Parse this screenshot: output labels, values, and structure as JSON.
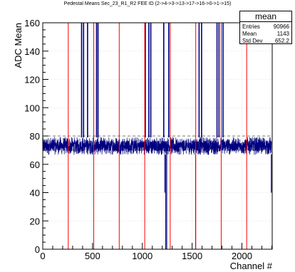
{
  "chart_data": {
    "type": "line",
    "title": "Pedestal Means Sec_23_R1_R2 FEE ID (2->4->3->13->17->16->0->1->15)",
    "xlabel": "Channel #",
    "ylabel": "ADC Mean",
    "xlim": [
      0,
      2304
    ],
    "ylim": [
      0,
      160
    ],
    "x_ticks": [
      0,
      500,
      1000,
      1500,
      2000
    ],
    "y_ticks": [
      0,
      20,
      40,
      60,
      80,
      100,
      120,
      140,
      160
    ],
    "grid": true,
    "series": [
      {
        "name": "mean",
        "color": "#00007f",
        "baseline_mean": 73,
        "noise_band": [
          66,
          80
        ],
        "spikes": [
          {
            "x": 390,
            "y": 160
          },
          {
            "x": 410,
            "y": 160
          },
          {
            "x": 450,
            "y": 160
          },
          {
            "x": 540,
            "y": 160
          },
          {
            "x": 555,
            "y": 160
          },
          {
            "x": 1030,
            "y": 160
          },
          {
            "x": 1065,
            "y": 160
          },
          {
            "x": 1085,
            "y": 160
          },
          {
            "x": 1215,
            "y": 160
          },
          {
            "x": 1265,
            "y": 160
          },
          {
            "x": 1570,
            "y": 160
          },
          {
            "x": 1595,
            "y": 160
          },
          {
            "x": 1750,
            "y": 160
          },
          {
            "x": 1770,
            "y": 160
          },
          {
            "x": 1810,
            "y": 160
          }
        ],
        "dips": [
          {
            "x": 1225,
            "y": 40
          },
          {
            "x": 1235,
            "y": 0
          },
          {
            "x": 1245,
            "y": 0
          },
          {
            "x": 1535,
            "y": 0
          },
          {
            "x": 2295,
            "y": 40
          }
        ]
      }
    ],
    "fee_boundaries": {
      "color": "#ff0000",
      "x": [
        256,
        512,
        768,
        1024,
        1280,
        1536,
        1792,
        2048
      ]
    },
    "reference_lines": {
      "color": "#000000",
      "style": "dashed",
      "y": [
        70,
        80
      ]
    }
  },
  "stats_box": {
    "title": "mean",
    "rows": [
      {
        "key": "Entries",
        "value": "90966"
      },
      {
        "key": "Mean",
        "value": "1143"
      },
      {
        "key": "Std Dev",
        "value": "652.2"
      }
    ]
  }
}
